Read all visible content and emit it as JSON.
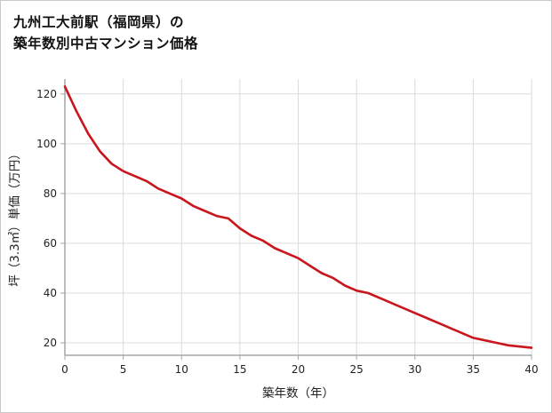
{
  "title": {
    "line1": "九州工大前駅（福岡県）の",
    "line2": "築年数別中古マンション価格"
  },
  "chart_data": {
    "type": "line",
    "title": "九州工大前駅（福岡県）の築年数別中古マンション価格",
    "xlabel": "築年数（年）",
    "ylabel": "坪（3.3㎡）単価（万円）",
    "xlim": [
      0,
      40
    ],
    "ylim": [
      15,
      126
    ],
    "x_ticks": [
      0,
      5,
      10,
      15,
      20,
      25,
      30,
      35,
      40
    ],
    "y_ticks": [
      20,
      40,
      60,
      80,
      100,
      120
    ],
    "grid": true,
    "legend": "none",
    "line_color": "#c9161d",
    "axis_color": "#a6a6a6",
    "grid_color": "#dcdcdc",
    "x": [
      0,
      1,
      2,
      3,
      4,
      5,
      6,
      7,
      8,
      9,
      10,
      11,
      12,
      13,
      14,
      15,
      16,
      17,
      18,
      19,
      20,
      21,
      22,
      23,
      24,
      25,
      26,
      27,
      28,
      29,
      30,
      31,
      32,
      33,
      34,
      35,
      36,
      37,
      38,
      39,
      40
    ],
    "values": [
      123,
      113,
      104,
      97,
      92,
      89,
      87,
      85,
      82,
      80,
      78,
      75,
      73,
      71,
      70,
      66,
      63,
      61,
      58,
      56,
      54,
      51,
      48,
      46,
      43,
      41,
      40,
      38,
      36,
      34,
      32,
      30,
      28,
      26,
      24,
      22,
      21,
      20,
      19,
      18.5,
      18
    ]
  }
}
